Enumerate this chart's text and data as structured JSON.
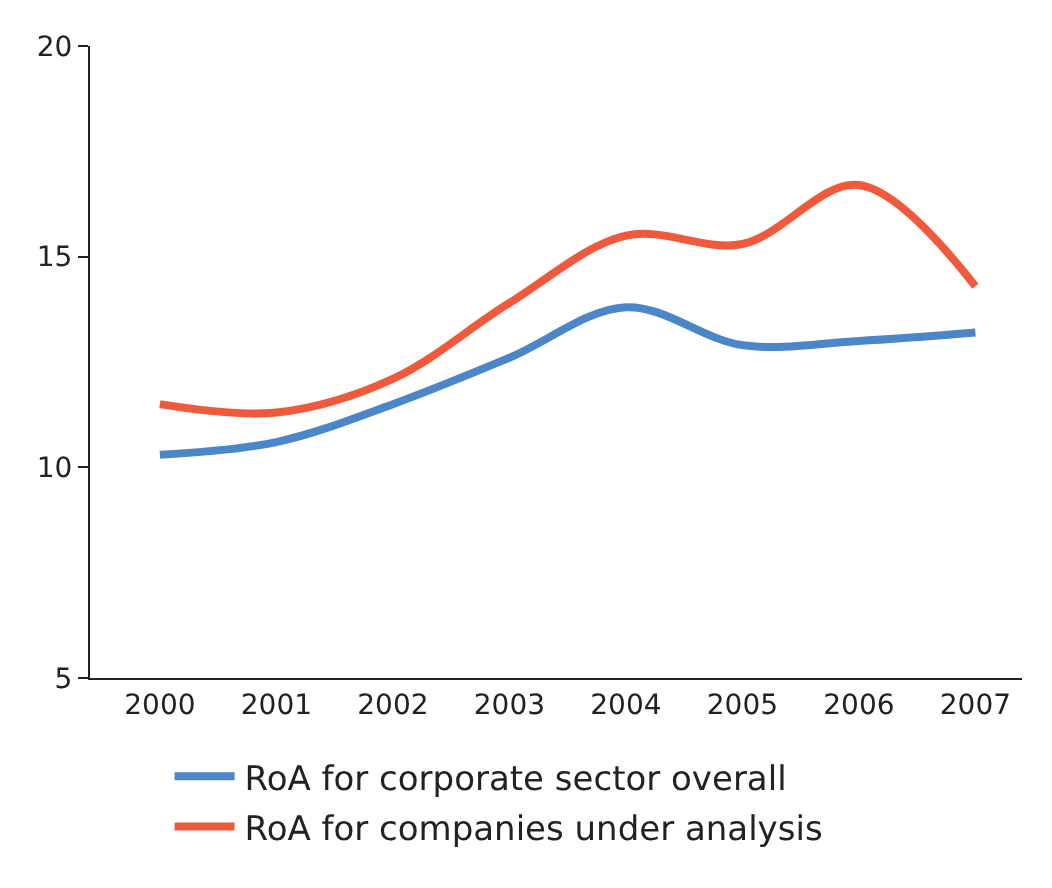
{
  "chart_data": {
    "type": "line",
    "categories": [
      "2000",
      "2001",
      "2002",
      "2003",
      "2004",
      "2005",
      "2006",
      "2007"
    ],
    "series": [
      {
        "name": "RoA for corporate sector overall",
        "color": "#4a86c8",
        "values": [
          10.3,
          10.6,
          11.5,
          12.6,
          13.8,
          12.9,
          13.0,
          13.2
        ]
      },
      {
        "name": "RoA for companies under analysis",
        "color": "#f05a3c",
        "values": [
          11.5,
          11.3,
          12.1,
          13.9,
          15.5,
          15.3,
          16.7,
          14.3
        ]
      }
    ],
    "ylim": [
      5,
      20
    ],
    "yticks": [
      5,
      10,
      15,
      20
    ],
    "legend": "bottom",
    "marker": "none",
    "line_style": "solid"
  }
}
